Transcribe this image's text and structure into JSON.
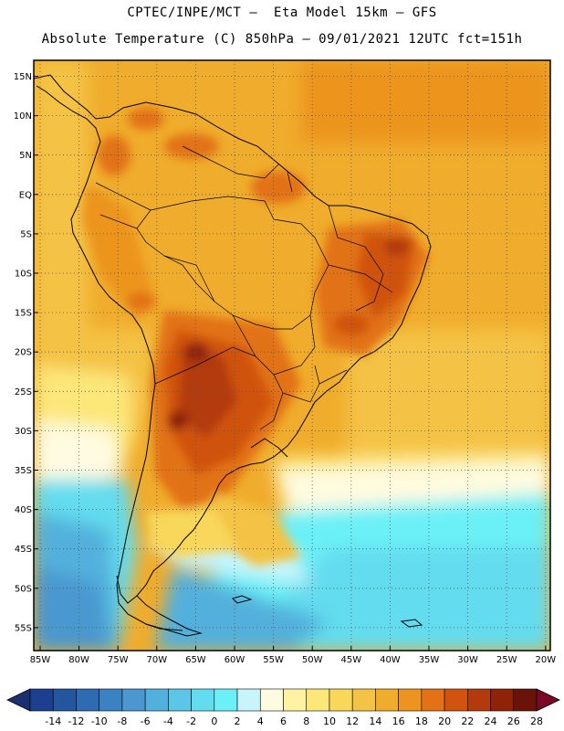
{
  "header": {
    "line1": "CPTEC/INPE/MCT –  Eta Model 15km – GFS",
    "line2": "Absolute Temperature (C) 850hPa – 09/01/2021 12UTC fct=151h"
  },
  "map": {
    "region": "South America",
    "lat_labels": [
      "15N",
      "10N",
      "5N",
      "EQ",
      "5S",
      "10S",
      "15S",
      "20S",
      "25S",
      "30S",
      "35S",
      "40S",
      "45S",
      "50S",
      "55S"
    ],
    "lon_labels": [
      "85W",
      "80W",
      "75W",
      "70W",
      "65W",
      "60W",
      "55W",
      "50W",
      "45W",
      "40W",
      "35W",
      "30W",
      "25W",
      "20W"
    ],
    "gridlines": "dotted"
  },
  "colorbar": {
    "labels": [
      "-14",
      "-12",
      "-10",
      "-8",
      "-6",
      "-4",
      "-2",
      "0",
      "2",
      "4",
      "6",
      "8",
      "10",
      "12",
      "14",
      "16",
      "18",
      "20",
      "22",
      "24",
      "26",
      "28"
    ],
    "colors": [
      "#1c3f8f",
      "#24559f",
      "#2f6bb3",
      "#3b82c4",
      "#4a98cf",
      "#52b0dc",
      "#5cc6e6",
      "#64dcef",
      "#6cf0f7",
      "#c8f4fb",
      "#fffbe0",
      "#fff3a2",
      "#fce77a",
      "#f8d75a",
      "#f4c244",
      "#f0ac2c",
      "#ec941f",
      "#e27213",
      "#d0530f",
      "#b33a0c",
      "#8e230a",
      "#6a1409"
    ],
    "under_color": "#1a3073",
    "over_color": "#7a0826"
  }
}
